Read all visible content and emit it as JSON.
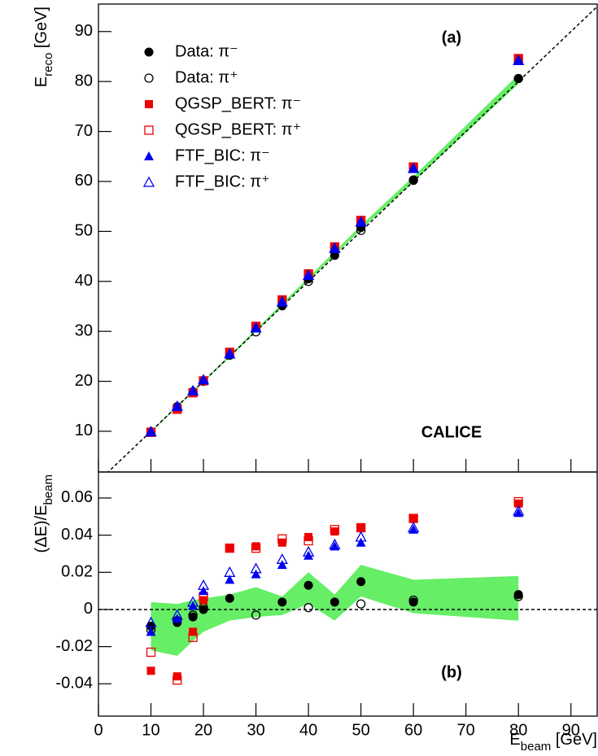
{
  "chart_data": [
    {
      "type": "scatter",
      "ylabel": [
        "E",
        "reco",
        " [GeV]"
      ],
      "annotations": [
        "(a)",
        "CALICE"
      ],
      "xlim": [
        0,
        95
      ],
      "ylim": [
        1.85,
        95.5
      ],
      "xticks": [
        0,
        10,
        20,
        30,
        40,
        50,
        60,
        70,
        80,
        90
      ],
      "yticks": [
        10,
        20,
        30,
        40,
        50,
        60,
        70,
        80,
        90
      ],
      "reference_line": {
        "slope": 1,
        "intercept": 0
      },
      "band": {
        "color": "#66ee66",
        "x": [
          10,
          20,
          30,
          40,
          50,
          60,
          80
        ],
        "lower": [
          9.8,
          19.76,
          29.9,
          40.1,
          50.35,
          59.9,
          79.5
        ],
        "upper": [
          10.05,
          20.12,
          30.4,
          40.8,
          51.2,
          61.0,
          81.4
        ]
      },
      "legend": "upper left",
      "x": [
        10,
        15,
        18,
        20,
        25,
        30,
        35,
        40,
        45,
        50,
        60,
        80
      ],
      "series": [
        {
          "name": "Data: π⁻",
          "color": "#000000",
          "marker": "circle",
          "filled": true,
          "values": [
            9.9,
            14.9,
            17.9,
            20.0,
            25.2,
            null,
            35.1,
            40.5,
            45.2,
            50.8,
            60.2,
            80.6
          ]
        },
        {
          "name": "Data: π⁺",
          "color": "#000000",
          "marker": "circle",
          "filled": false,
          "values": [
            9.9,
            14.9,
            17.9,
            20.0,
            null,
            29.9,
            null,
            40.0,
            null,
            50.2,
            60.3,
            80.6
          ]
        },
        {
          "name": "QGSP_BERT: π⁻",
          "color": "#ee0000",
          "marker": "square",
          "filled": true,
          "values": [
            9.7,
            14.5,
            17.8,
            20.1,
            25.8,
            31.0,
            36.3,
            41.6,
            46.9,
            52.2,
            62.9,
            84.6
          ]
        },
        {
          "name": "QGSP_BERT: π⁺",
          "color": "#ee0000",
          "marker": "square",
          "filled": false,
          "values": [
            9.8,
            14.4,
            17.7,
            20.1,
            25.8,
            31.0,
            36.3,
            41.5,
            46.9,
            52.2,
            62.9,
            84.6
          ]
        },
        {
          "name": "FTF_BIC: π⁻",
          "color": "#0000ee",
          "marker": "triangle",
          "filled": true,
          "values": [
            9.9,
            14.9,
            18.0,
            20.2,
            25.4,
            30.6,
            35.8,
            41.2,
            46.5,
            51.8,
            62.6,
            84.2
          ]
        },
        {
          "name": "FTF_BIC: π⁺",
          "color": "#0000ee",
          "marker": "triangle",
          "filled": false,
          "values": [
            9.9,
            15.0,
            18.1,
            20.3,
            25.5,
            30.7,
            35.9,
            41.2,
            46.6,
            51.9,
            62.6,
            84.2
          ]
        }
      ]
    },
    {
      "type": "scatter",
      "ylabel": [
        "(ΔE)/E",
        "beam"
      ],
      "xlabel": [
        "E",
        "beam",
        " [GeV]"
      ],
      "annotations": [
        "(b)"
      ],
      "xlim": [
        0,
        95
      ],
      "ylim": [
        -0.0574,
        0.074
      ],
      "xticks": [
        0,
        10,
        20,
        30,
        40,
        50,
        60,
        70,
        80,
        90
      ],
      "yticks": [
        -0.04,
        -0.02,
        0,
        0.02,
        0.04,
        0.06
      ],
      "reference_line": {
        "slope": 0,
        "intercept": 0
      },
      "band": {
        "color": "#66ee66",
        "x": [
          10,
          15,
          18,
          20,
          25,
          30,
          35,
          40,
          45,
          50,
          60,
          80
        ],
        "lower": [
          -0.022,
          -0.025,
          -0.017,
          -0.012,
          -0.006,
          -0.004,
          -0.003,
          0.003,
          -0.006,
          0.007,
          -0.002,
          -0.006
        ],
        "upper": [
          0.004,
          0.003,
          0.005,
          0.006,
          0.008,
          0.012,
          0.007,
          0.02,
          0.008,
          0.024,
          0.016,
          0.018
        ]
      },
      "x": [
        10,
        15,
        18,
        20,
        25,
        30,
        35,
        40,
        45,
        50,
        60,
        80
      ],
      "series": [
        {
          "color": "#000000",
          "marker": "circle",
          "filled": true,
          "values": [
            -0.009,
            -0.007,
            -0.004,
            0.0,
            0.006,
            null,
            0.004,
            0.013,
            0.004,
            0.015,
            0.004,
            0.008
          ]
        },
        {
          "color": "#000000",
          "marker": "circle",
          "filled": false,
          "values": [
            -0.011,
            -0.006,
            -0.003,
            0.001,
            null,
            -0.003,
            null,
            0.001,
            null,
            0.003,
            0.005,
            0.007
          ]
        },
        {
          "color": "#ee0000",
          "marker": "square",
          "filled": true,
          "values": [
            -0.033,
            -0.036,
            -0.012,
            0.005,
            0.033,
            0.034,
            0.036,
            0.039,
            0.042,
            0.044,
            0.049,
            0.057
          ]
        },
        {
          "color": "#ee0000",
          "marker": "square",
          "filled": false,
          "values": [
            -0.023,
            -0.038,
            -0.015,
            0.007,
            0.033,
            0.033,
            0.038,
            0.037,
            0.043,
            0.044,
            0.049,
            0.058
          ]
        },
        {
          "color": "#0000ee",
          "marker": "triangle",
          "filled": true,
          "values": [
            -0.012,
            -0.005,
            0.002,
            0.01,
            0.016,
            0.019,
            0.024,
            0.029,
            0.034,
            0.036,
            0.043,
            0.052
          ]
        },
        {
          "color": "#0000ee",
          "marker": "triangle",
          "filled": false,
          "values": [
            -0.007,
            -0.003,
            0.004,
            0.013,
            0.02,
            0.022,
            0.027,
            0.031,
            0.035,
            0.039,
            0.044,
            0.053
          ]
        }
      ]
    }
  ]
}
